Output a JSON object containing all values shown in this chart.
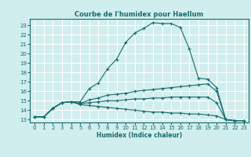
{
  "title": "Courbe de l'humidex pour Haellum",
  "xlabel": "Humidex (Indice chaleur)",
  "xlim": [
    -0.5,
    23.5
  ],
  "ylim": [
    12.7,
    23.7
  ],
  "xticks": [
    0,
    1,
    2,
    3,
    4,
    5,
    6,
    7,
    8,
    9,
    10,
    11,
    12,
    13,
    14,
    15,
    16,
    17,
    18,
    19,
    20,
    21,
    22,
    23
  ],
  "yticks": [
    13,
    14,
    15,
    16,
    17,
    18,
    19,
    20,
    21,
    22,
    23
  ],
  "bg_color": "#d0eeee",
  "line_color": "#1a6b6b",
  "grid_color": "#ffffff",
  "lines": [
    {
      "x": [
        0,
        1,
        2,
        3,
        4,
        5,
        6,
        7,
        8,
        9,
        10,
        11,
        12,
        13,
        14,
        15,
        16,
        17,
        18,
        19,
        20,
        21,
        22,
        23
      ],
      "y": [
        13.3,
        13.3,
        14.2,
        14.8,
        14.9,
        14.9,
        16.3,
        16.9,
        18.4,
        19.4,
        21.2,
        22.2,
        22.7,
        23.3,
        23.2,
        23.2,
        22.8,
        20.5,
        17.4,
        17.3,
        16.4,
        13.0,
        12.9,
        12.9
      ]
    },
    {
      "x": [
        0,
        1,
        2,
        3,
        4,
        5,
        6,
        7,
        8,
        9,
        10,
        11,
        12,
        13,
        14,
        15,
        16,
        17,
        18,
        19,
        20,
        21,
        22,
        23
      ],
      "y": [
        13.3,
        13.3,
        14.2,
        14.8,
        14.9,
        14.7,
        15.1,
        15.3,
        15.6,
        15.7,
        15.8,
        16.0,
        16.1,
        16.2,
        16.3,
        16.4,
        16.5,
        16.6,
        16.7,
        16.8,
        16.0,
        13.0,
        12.9,
        12.9
      ]
    },
    {
      "x": [
        0,
        1,
        2,
        3,
        4,
        5,
        6,
        7,
        8,
        9,
        10,
        11,
        12,
        13,
        14,
        15,
        16,
        17,
        18,
        19,
        20,
        21,
        22,
        23
      ],
      "y": [
        13.3,
        13.3,
        14.2,
        14.8,
        14.9,
        14.7,
        14.8,
        14.9,
        15.0,
        15.0,
        15.1,
        15.2,
        15.2,
        15.3,
        15.3,
        15.4,
        15.4,
        15.4,
        15.4,
        15.4,
        14.8,
        13.0,
        12.9,
        12.9
      ]
    },
    {
      "x": [
        0,
        1,
        2,
        3,
        4,
        5,
        6,
        7,
        8,
        9,
        10,
        11,
        12,
        13,
        14,
        15,
        16,
        17,
        18,
        19,
        20,
        21,
        22,
        23
      ],
      "y": [
        13.3,
        13.3,
        14.2,
        14.8,
        14.9,
        14.6,
        14.5,
        14.4,
        14.3,
        14.2,
        14.1,
        14.0,
        13.9,
        13.8,
        13.8,
        13.7,
        13.7,
        13.6,
        13.6,
        13.5,
        13.4,
        13.0,
        12.9,
        12.9
      ]
    }
  ]
}
